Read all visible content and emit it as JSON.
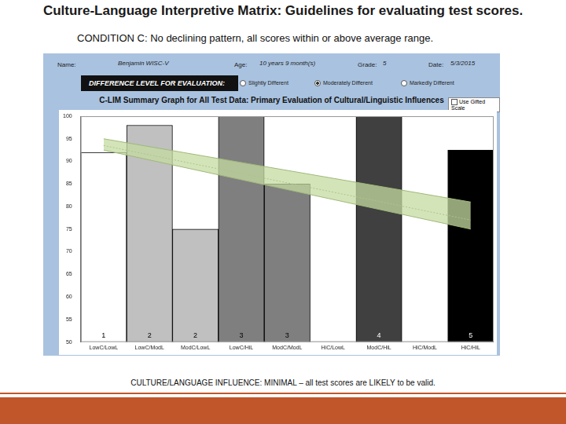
{
  "slide": {
    "title": "Culture-Language Interpretive Matrix: Guidelines for evaluating test scores.",
    "subtitle": "CONDITION C: No declining pattern, all scores within or above average range.",
    "footer": "CULTURE/LANGUAGE INFLUENCE: MINIMAL – all test scores are LIKELY to be valid."
  },
  "form": {
    "name_label": "Name:",
    "name": "Benjamin   WISC-V",
    "age_label": "Age:",
    "age": "10 years 9 month(s)",
    "grade_label": "Grade:",
    "grade": "5",
    "date_label": "Date:",
    "date": "5/3/2015",
    "difference_label": "DIFFERENCE LEVEL FOR EVALUATION:",
    "options": [
      "Slightly Different",
      "Moderately Different",
      "Markedly Different"
    ],
    "selected": "Moderately Different",
    "checkbox": "Use Gifted Scale"
  },
  "chart_data": {
    "type": "bar",
    "title": "C-LIM Summary Graph for All Test Data: Primary Evaluation of Cultural/Linguistic Influences",
    "categories": [
      "LowC/LowL",
      "LowC/ModL",
      "ModC/LowL",
      "LowC/HiL",
      "ModC/ModL",
      "HiC/LowL",
      "ModC/HiL",
      "HiC/ModL",
      "HiC/HiL"
    ],
    "values": [
      92,
      98,
      75,
      100,
      85,
      null,
      100,
      null,
      92.5
    ],
    "colors": [
      "#ffffff",
      "#c0c0c0",
      "#c0c0c0",
      "#7f7f7f",
      "#7f7f7f",
      "#ffffff",
      "#404040",
      "#ffffff",
      "#000000"
    ],
    "bar_numbers": [
      1,
      2,
      2,
      3,
      3,
      null,
      4,
      null,
      5
    ],
    "trend_band": {
      "upper": [
        95,
        null,
        null,
        null,
        null,
        null,
        null,
        null,
        81
      ],
      "lower": [
        92.5,
        null,
        null,
        null,
        null,
        null,
        null,
        null,
        75
      ]
    },
    "trend_line": [
      93.5,
      null,
      null,
      null,
      null,
      null,
      null,
      null,
      77
    ],
    "ylim": [
      50,
      100
    ],
    "yticks": [
      50,
      55,
      60,
      65,
      70,
      75,
      80,
      85,
      90,
      95,
      100
    ],
    "grid": false
  }
}
